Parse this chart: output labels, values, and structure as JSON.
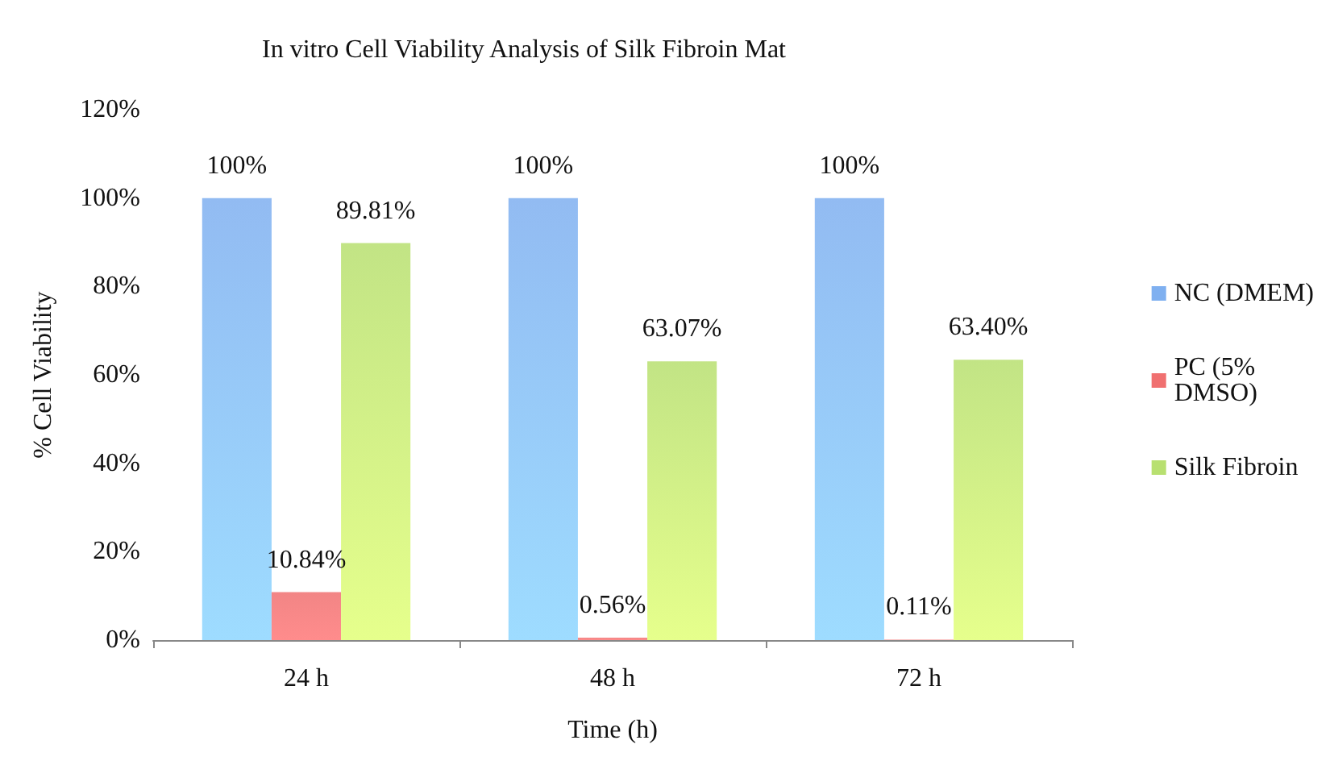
{
  "chart_data": {
    "type": "bar",
    "title": "In vitro Cell Viability Analysis of Silk Fibroin Mat",
    "xlabel": "Time (h)",
    "ylabel": "% Cell Viability",
    "categories": [
      "24 h",
      "48 h",
      "72 h"
    ],
    "series": [
      {
        "name": "NC (DMEM)",
        "color": "#7fb0f0",
        "values": [
          100,
          100,
          100
        ],
        "value_labels": [
          "100%",
          "100%",
          "100%"
        ]
      },
      {
        "name": "PC (5% DMSO)",
        "color": "#f07070",
        "values": [
          10.84,
          0.56,
          0.11
        ],
        "value_labels": [
          "10.84%",
          "0.56%",
          "0.11%"
        ]
      },
      {
        "name": "Silk Fibroin",
        "color": "#b8e070",
        "values": [
          89.81,
          63.07,
          63.4
        ],
        "value_labels": [
          "89.81%",
          "63.07%",
          "63.40%"
        ]
      }
    ],
    "ylim": [
      0,
      120
    ],
    "yticks": [
      {
        "value": 0,
        "label": "0%"
      },
      {
        "value": 20,
        "label": "20%"
      },
      {
        "value": 40,
        "label": "40%"
      },
      {
        "value": 60,
        "label": "60%"
      },
      {
        "value": 80,
        "label": "80%"
      },
      {
        "value": 100,
        "label": "100%"
      },
      {
        "value": 120,
        "label": "120%"
      }
    ],
    "grid": false,
    "legend": "right"
  }
}
